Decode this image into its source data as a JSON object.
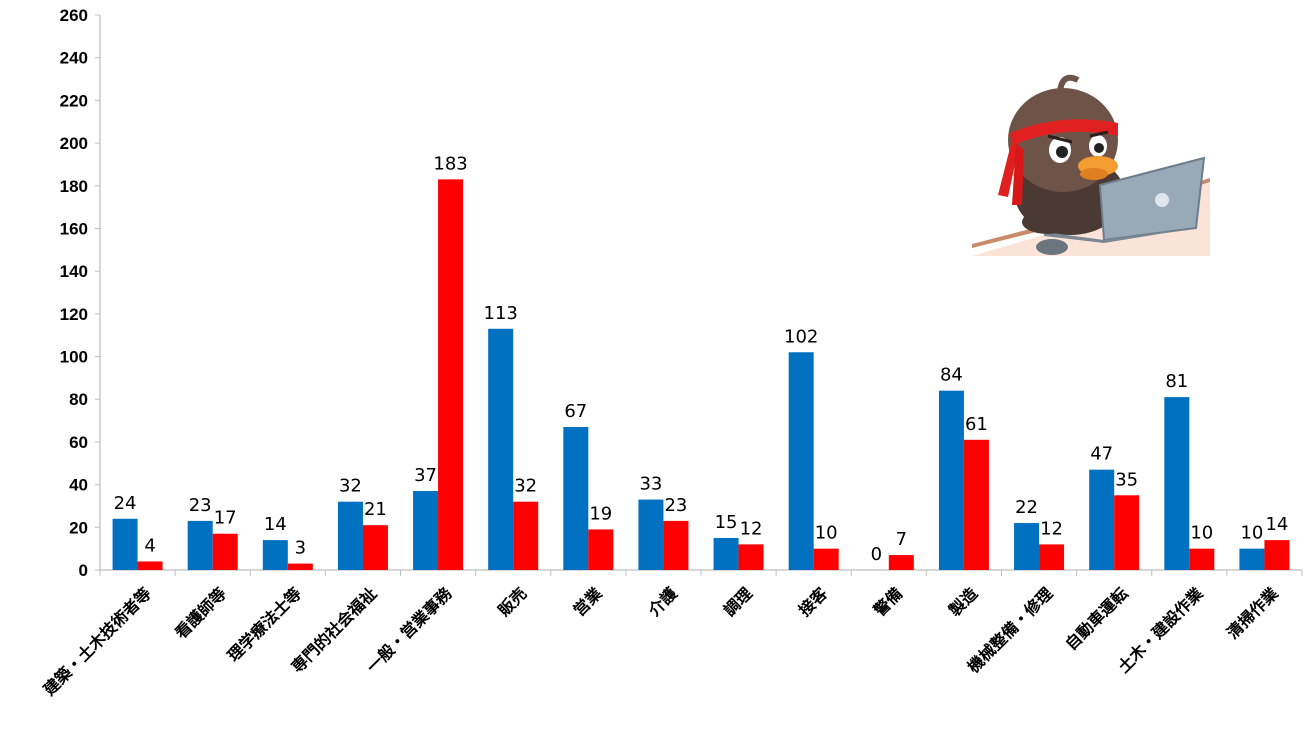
{
  "chart_data": {
    "type": "bar",
    "categories": [
      "建築・土木技術者等",
      "看護師等",
      "理学療法士等",
      "専門的社会福祉",
      "一般・営業事務",
      "販売",
      "営業",
      "介護",
      "調理",
      "接客",
      "警備",
      "製造",
      "機械整備・修理",
      "自動車運転",
      "土木・建設作業",
      "清掃作業"
    ],
    "series": [
      {
        "values": [
          24,
          23,
          14,
          32,
          37,
          113,
          67,
          33,
          15,
          102,
          0,
          84,
          22,
          47,
          81,
          10
        ],
        "color": "#0070C0"
      },
      {
        "values": [
          4,
          17,
          3,
          21,
          183,
          32,
          19,
          23,
          12,
          10,
          7,
          61,
          12,
          35,
          10,
          14
        ],
        "color": "#FF0000"
      }
    ],
    "ylim": [
      0,
      260
    ],
    "yticks": [
      0,
      20,
      40,
      60,
      80,
      100,
      120,
      140,
      160,
      180,
      200,
      220,
      240,
      260
    ],
    "title": "",
    "xlabel": "",
    "ylabel": "",
    "grid": false,
    "legend": "none",
    "mascot_icon": "duck-mascot-at-laptop-illustration"
  }
}
